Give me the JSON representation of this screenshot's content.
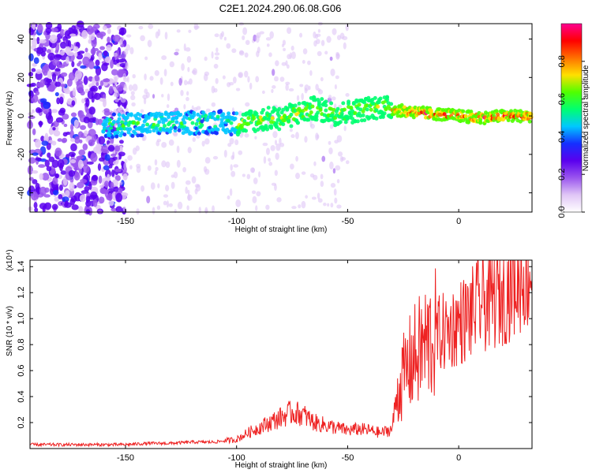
{
  "chart_data": [
    {
      "type": "heatmap",
      "title": "C2E1.2024.290.06.08.G06",
      "xlabel": "Height of straight line (km)",
      "ylabel": "Frequency (Hz)",
      "xlim": [
        -193,
        33
      ],
      "ylim": [
        -50,
        48
      ],
      "xticks": [
        -150,
        -100,
        -50,
        0
      ],
      "yticks": [
        -40,
        -20,
        0,
        20,
        40
      ],
      "colorbar": {
        "label": "Normalized spectral amplitude",
        "range": [
          0.0,
          1.0
        ],
        "ticks": [
          "0.0",
          "0.2",
          "0.4",
          "0.6",
          "0.8"
        ],
        "tick_values": [
          0.0,
          0.2,
          0.4,
          0.6,
          0.8
        ],
        "colors": [
          "#ffffff",
          "#e0c6f6",
          "#9a55ee",
          "#5a00ee",
          "#1530ff",
          "#00c8ff",
          "#00ff70",
          "#50ff00",
          "#ffe000",
          "#ff7000",
          "#ff0000",
          "#ff0090"
        ]
      },
      "ridge": {
        "x": [
          -155,
          -140,
          -125,
          -110,
          -100,
          -90,
          -80,
          -70,
          -65,
          -55,
          -45,
          -35,
          -28,
          -20,
          -10,
          0,
          10,
          20,
          33
        ],
        "y": [
          -5,
          -4,
          -4,
          -3,
          -4,
          -2,
          -1,
          2,
          4,
          1,
          3,
          5,
          3,
          2,
          1,
          0,
          -1,
          0,
          0
        ]
      }
    },
    {
      "type": "line",
      "xlabel": "Height of straight line (km)",
      "ylabel": "SNR (10 * v/v)",
      "y_multiplier": "(x10⁴)",
      "xlim": [
        -193,
        33
      ],
      "ylim": [
        0,
        1.45
      ],
      "xticks": [
        -150,
        -100,
        -50,
        0
      ],
      "yticks": [
        0.2,
        0.4,
        0.6,
        0.8,
        1.0,
        1.2,
        1.4
      ],
      "ytick_labels": [
        "0.2",
        "0.4",
        "0.6",
        "0.8",
        "1.0",
        "1.2",
        "1.4"
      ],
      "color": "#ee2222",
      "series": [
        {
          "x": [
            -193,
            -180,
            -170,
            -160,
            -150,
            -140,
            -130,
            -120,
            -110,
            -100,
            -95,
            -90,
            -85,
            -80,
            -75,
            -70,
            -65,
            -60,
            -55,
            -50,
            -45,
            -40,
            -35,
            -30,
            -28,
            -25,
            -22,
            -20,
            -15,
            -10,
            -5,
            0,
            5,
            10,
            15,
            20,
            25,
            33
          ],
          "values": [
            0.03,
            0.03,
            0.03,
            0.03,
            0.03,
            0.04,
            0.04,
            0.05,
            0.05,
            0.07,
            0.12,
            0.16,
            0.2,
            0.24,
            0.28,
            0.26,
            0.2,
            0.18,
            0.16,
            0.14,
            0.15,
            0.14,
            0.12,
            0.15,
            0.4,
            0.55,
            0.65,
            0.7,
            0.8,
            0.88,
            0.9,
            0.97,
            1.02,
            1.12,
            1.15,
            1.2,
            1.3,
            1.38
          ]
        }
      ]
    }
  ]
}
